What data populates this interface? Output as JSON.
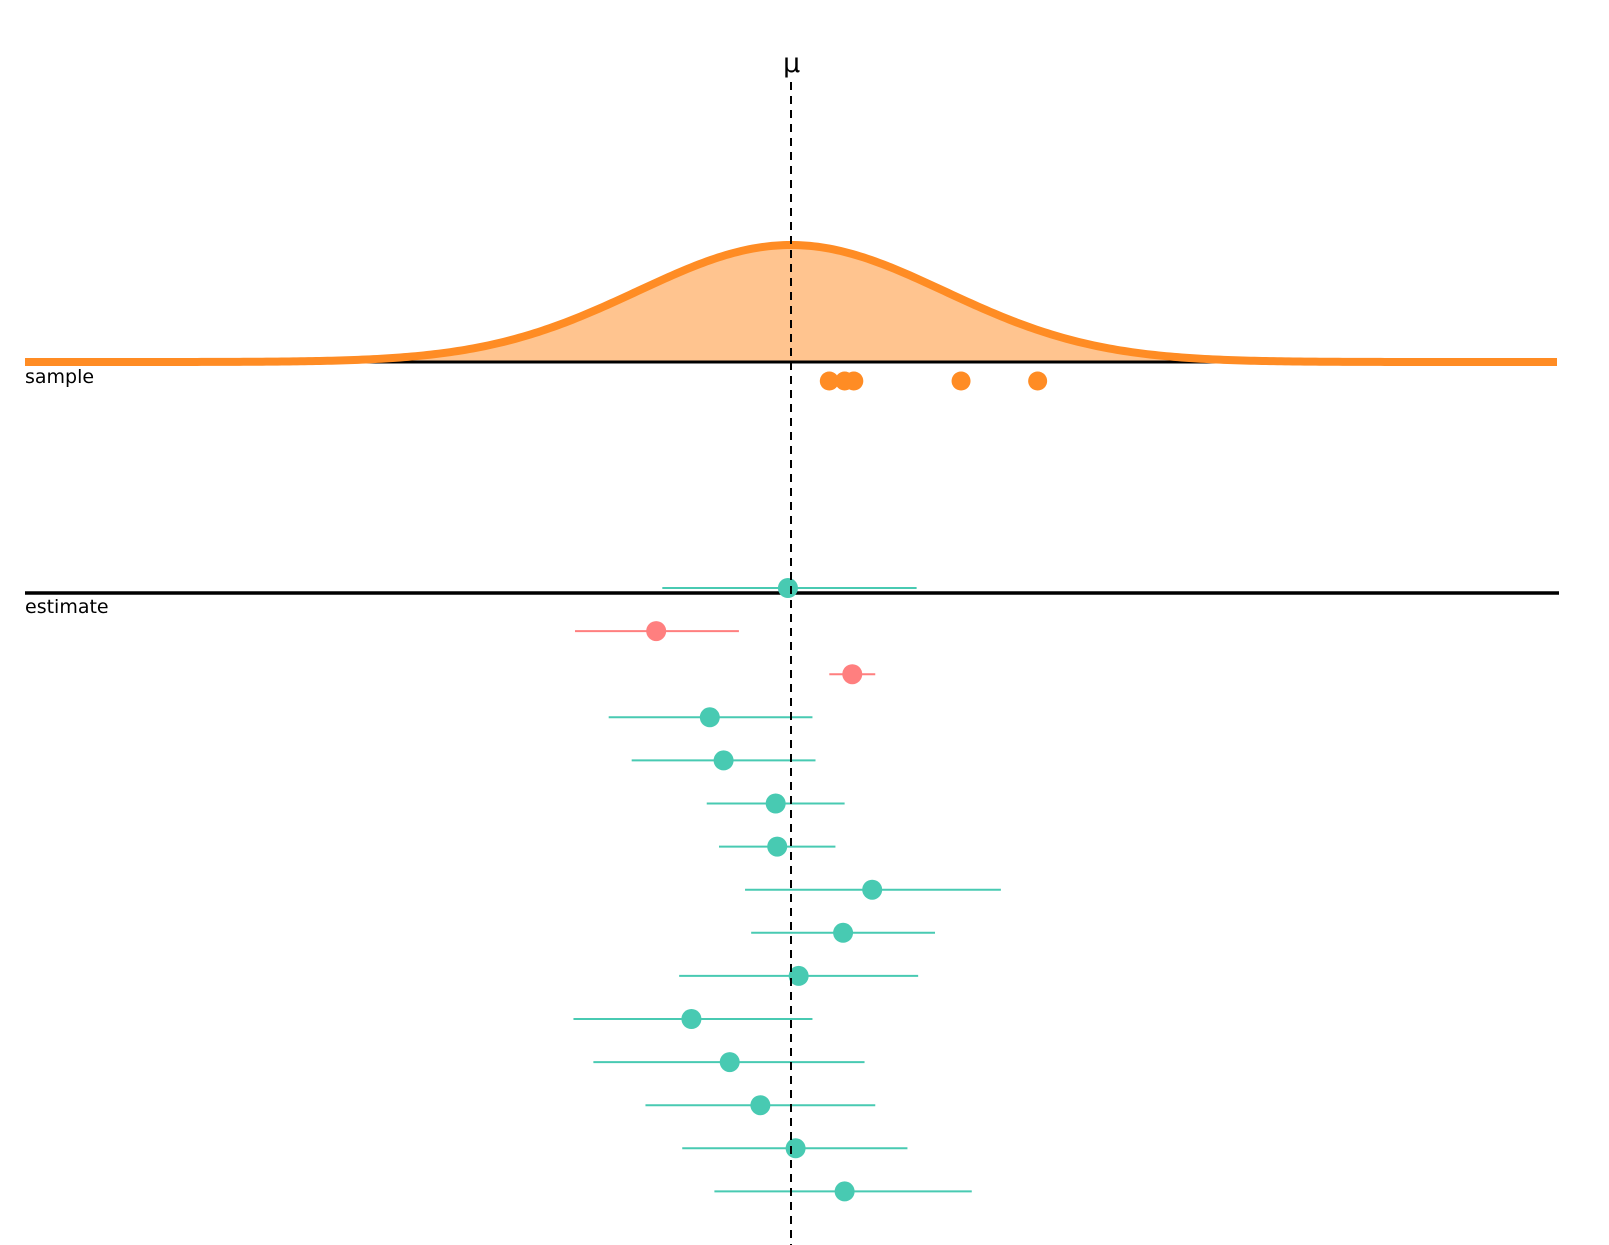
{
  "chart_data": {
    "type": "scatter",
    "reference_line": {
      "label": "μ",
      "x": 0,
      "style": "dashed"
    },
    "population": {
      "mean": 0,
      "sd": 1,
      "fill": "#FFC48F",
      "stroke": "#FF8C24"
    },
    "panels": [
      {
        "label": "sample"
      },
      {
        "label": "estimate"
      }
    ],
    "sample_points": [
      0.25,
      0.35,
      0.41,
      1.11,
      1.61
    ],
    "sample_color": "#FF8C24",
    "estimates": [
      {
        "mean": -0.02,
        "lower": -0.84,
        "upper": 0.82,
        "covers": true
      },
      {
        "mean": -0.88,
        "lower": -1.41,
        "upper": -0.34,
        "covers": false
      },
      {
        "mean": 0.4,
        "lower": 0.25,
        "upper": 0.55,
        "covers": false
      },
      {
        "mean": -0.53,
        "lower": -1.19,
        "upper": 0.14,
        "covers": true
      },
      {
        "mean": -0.44,
        "lower": -1.04,
        "upper": 0.16,
        "covers": true
      },
      {
        "mean": -0.1,
        "lower": -0.55,
        "upper": 0.35,
        "covers": true
      },
      {
        "mean": -0.09,
        "lower": -0.47,
        "upper": 0.29,
        "covers": true
      },
      {
        "mean": 0.53,
        "lower": -0.3,
        "upper": 1.37,
        "covers": true
      },
      {
        "mean": 0.34,
        "lower": -0.26,
        "upper": 0.94,
        "covers": true
      },
      {
        "mean": 0.05,
        "lower": -0.73,
        "upper": 0.83,
        "covers": true
      },
      {
        "mean": -0.65,
        "lower": -1.42,
        "upper": 0.14,
        "covers": true
      },
      {
        "mean": -0.4,
        "lower": -1.29,
        "upper": 0.48,
        "covers": true
      },
      {
        "mean": -0.2,
        "lower": -0.95,
        "upper": 0.55,
        "covers": true
      },
      {
        "mean": 0.03,
        "lower": -0.71,
        "upper": 0.76,
        "covers": true
      },
      {
        "mean": 0.35,
        "lower": -0.5,
        "upper": 1.18,
        "covers": true
      }
    ],
    "covers_color": "#48CAB2",
    "misses_color": "#FF7F7F",
    "xlim": [
      -5,
      5
    ],
    "grid": false,
    "legend": "none"
  }
}
